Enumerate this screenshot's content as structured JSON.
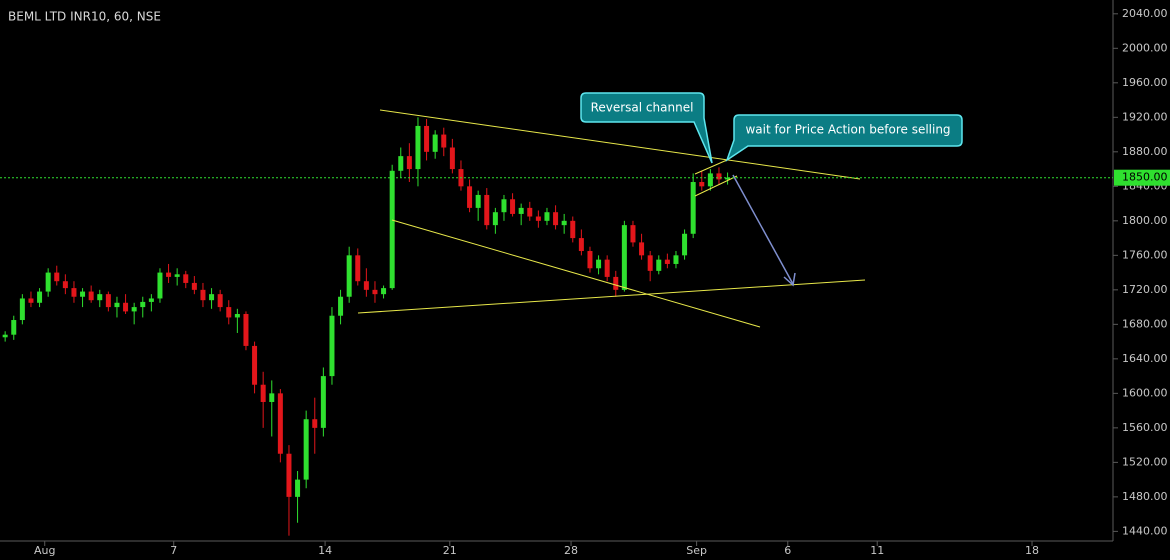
{
  "chart_data": {
    "type": "candlestick",
    "title": "BEML LTD INR10, 60, NSE",
    "up_color": "#2fe02f",
    "down_color": "#e3161b",
    "x": [
      1,
      2,
      3,
      4,
      5,
      6,
      7,
      8,
      9,
      10,
      11,
      12,
      13,
      14,
      15,
      16,
      17,
      18,
      19,
      20,
      21,
      22,
      23,
      24,
      25,
      26,
      27,
      28,
      29,
      30,
      31,
      32,
      33,
      34,
      35,
      36,
      37,
      38,
      39,
      40,
      41,
      42,
      43,
      44,
      45,
      46,
      47,
      48,
      49,
      50,
      51,
      52,
      53,
      54,
      55,
      56,
      57,
      58,
      59,
      60,
      61,
      62,
      63,
      64,
      65,
      66,
      67,
      68,
      69,
      70,
      71,
      72,
      73,
      74,
      75,
      76,
      77,
      78,
      79,
      80,
      81,
      82,
      83,
      84,
      85
    ],
    "open": [
      1665,
      1668,
      1685,
      1710,
      1705,
      1718,
      1740,
      1730,
      1722,
      1712,
      1718,
      1708,
      1715,
      1700,
      1705,
      1695,
      1700,
      1706,
      1710,
      1740,
      1735,
      1738,
      1728,
      1720,
      1708,
      1715,
      1700,
      1688,
      1692,
      1655,
      1610,
      1590,
      1600,
      1530,
      1480,
      1500,
      1570,
      1560,
      1620,
      1690,
      1712,
      1760,
      1730,
      1720,
      1715,
      1722,
      1858,
      1875,
      1860,
      1910,
      1880,
      1900,
      1885,
      1860,
      1840,
      1815,
      1830,
      1795,
      1810,
      1825,
      1808,
      1815,
      1805,
      1800,
      1810,
      1795,
      1800,
      1780,
      1765,
      1745,
      1755,
      1735,
      1720,
      1795,
      1775,
      1760,
      1742,
      1755,
      1750,
      1760,
      1785,
      1845,
      1840,
      1855,
      1848
    ],
    "high": [
      1672,
      1690,
      1715,
      1718,
      1722,
      1745,
      1748,
      1738,
      1730,
      1722,
      1725,
      1720,
      1718,
      1712,
      1715,
      1705,
      1712,
      1715,
      1745,
      1750,
      1745,
      1742,
      1736,
      1728,
      1722,
      1720,
      1708,
      1698,
      1695,
      1660,
      1625,
      1615,
      1605,
      1540,
      1510,
      1580,
      1595,
      1630,
      1700,
      1720,
      1770,
      1768,
      1745,
      1730,
      1725,
      1865,
      1885,
      1890,
      1920,
      1918,
      1905,
      1908,
      1895,
      1870,
      1848,
      1835,
      1838,
      1815,
      1830,
      1832,
      1820,
      1822,
      1812,
      1815,
      1818,
      1808,
      1805,
      1790,
      1770,
      1760,
      1760,
      1742,
      1800,
      1800,
      1785,
      1765,
      1760,
      1762,
      1765,
      1790,
      1855,
      1858,
      1860,
      1862,
      1856
    ],
    "low": [
      1660,
      1662,
      1680,
      1700,
      1700,
      1712,
      1725,
      1715,
      1705,
      1700,
      1705,
      1700,
      1695,
      1688,
      1692,
      1680,
      1688,
      1695,
      1705,
      1728,
      1725,
      1722,
      1715,
      1700,
      1698,
      1695,
      1680,
      1670,
      1650,
      1600,
      1560,
      1550,
      1520,
      1435,
      1450,
      1490,
      1530,
      1550,
      1610,
      1680,
      1705,
      1725,
      1712,
      1705,
      1710,
      1720,
      1850,
      1845,
      1840,
      1870,
      1872,
      1875,
      1855,
      1835,
      1810,
      1800,
      1790,
      1785,
      1800,
      1805,
      1795,
      1800,
      1792,
      1795,
      1790,
      1785,
      1775,
      1760,
      1740,
      1738,
      1730,
      1712,
      1718,
      1770,
      1755,
      1730,
      1738,
      1745,
      1745,
      1755,
      1780,
      1835,
      1835,
      1842,
      1842
    ],
    "close": [
      1668,
      1685,
      1710,
      1705,
      1718,
      1740,
      1730,
      1722,
      1712,
      1718,
      1708,
      1715,
      1700,
      1705,
      1695,
      1700,
      1706,
      1710,
      1740,
      1735,
      1738,
      1728,
      1720,
      1708,
      1715,
      1700,
      1688,
      1692,
      1655,
      1610,
      1590,
      1600,
      1530,
      1480,
      1500,
      1570,
      1560,
      1620,
      1690,
      1712,
      1760,
      1730,
      1720,
      1715,
      1722,
      1858,
      1875,
      1860,
      1910,
      1880,
      1900,
      1885,
      1860,
      1840,
      1815,
      1830,
      1795,
      1810,
      1825,
      1808,
      1815,
      1805,
      1800,
      1810,
      1795,
      1800,
      1780,
      1765,
      1745,
      1755,
      1735,
      1720,
      1795,
      1775,
      1760,
      1742,
      1755,
      1750,
      1760,
      1785,
      1845,
      1840,
      1855,
      1848,
      1850
    ],
    "xlim": [
      0.4,
      129.7
    ],
    "xticks": [
      {
        "value": 5.6,
        "label": "Aug"
      },
      {
        "value": 20.6,
        "label": "7"
      },
      {
        "value": 38.2,
        "label": "14"
      },
      {
        "value": 52.7,
        "label": "21"
      },
      {
        "value": 66.8,
        "label": "28"
      },
      {
        "value": 81.4,
        "label": "Sep"
      },
      {
        "value": 92.0,
        "label": "6"
      },
      {
        "value": 102.4,
        "label": "11"
      },
      {
        "value": 120.4,
        "label": "18"
      }
    ],
    "ylim": [
      1430,
      2056
    ],
    "yticks": [
      {
        "value": 1440,
        "label": "1440.00"
      },
      {
        "value": 1480,
        "label": "1480.00"
      },
      {
        "value": 1520,
        "label": "1520.00"
      },
      {
        "value": 1560,
        "label": "1560.00"
      },
      {
        "value": 1600,
        "label": "1600.00"
      },
      {
        "value": 1640,
        "label": "1640.00"
      },
      {
        "value": 1680,
        "label": "1680.00"
      },
      {
        "value": 1720,
        "label": "1720.00"
      },
      {
        "value": 1760,
        "label": "1760.00"
      },
      {
        "value": 1800,
        "label": "1800.00"
      },
      {
        "value": 1840,
        "label": "1840.00"
      },
      {
        "value": 1880,
        "label": "1880.00"
      },
      {
        "value": 1920,
        "label": "1920.00"
      },
      {
        "value": 1960,
        "label": "1960.00"
      },
      {
        "value": 2000,
        "label": "2000.00"
      },
      {
        "value": 2040,
        "label": "2040.00"
      }
    ],
    "last_price": {
      "value": 1850,
      "label": "1850.00",
      "color": "#2fe02f"
    }
  },
  "annotations": [
    "Reversal channel",
    "wait for Price Action before selling"
  ]
}
